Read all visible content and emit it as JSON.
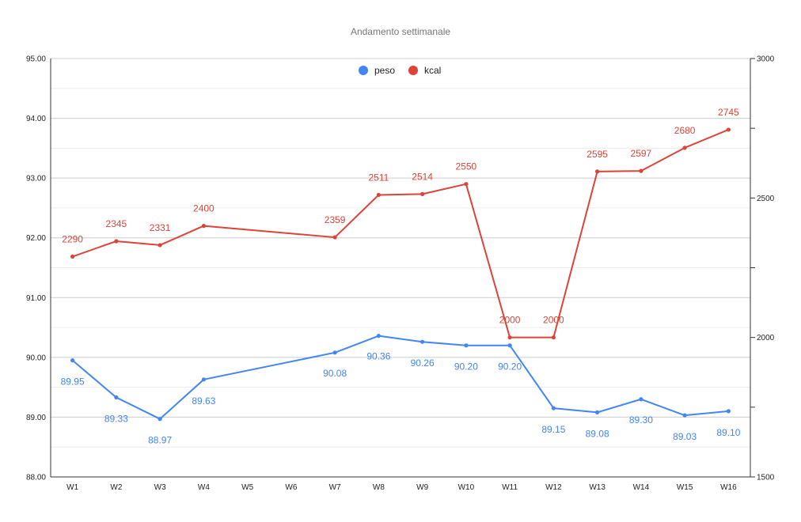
{
  "chart_data": {
    "type": "line",
    "title": "Andamento settimanale",
    "categories": [
      "W1",
      "W2",
      "W3",
      "W4",
      "W5",
      "W6",
      "W7",
      "W8",
      "W9",
      "W10",
      "W11",
      "W12",
      "W13",
      "W14",
      "W15",
      "W16"
    ],
    "legend_position": "top",
    "grid": true,
    "y_left": {
      "range": [
        88,
        95
      ],
      "ticks": [
        "88.00",
        "89.00",
        "90.00",
        "91.00",
        "92.00",
        "93.00",
        "94.00",
        "95.00"
      ]
    },
    "y_right": {
      "range": [
        1500,
        3000
      ],
      "ticks": [
        "1500",
        "2000",
        "2500",
        "3000"
      ]
    },
    "series": [
      {
        "name": "peso",
        "axis": "left",
        "color": "#4285F4",
        "values": [
          89.95,
          89.33,
          88.97,
          89.63,
          null,
          null,
          90.08,
          90.36,
          90.26,
          90.2,
          90.2,
          89.15,
          89.08,
          89.3,
          89.03,
          89.1
        ],
        "labels": [
          "89.95",
          "89.33",
          "88.97",
          "89.63",
          "",
          "",
          "90.08",
          "90.36",
          "90.26",
          "90.20",
          "90.20",
          "89.15",
          "89.08",
          "89.30",
          "89.03",
          "89.10"
        ]
      },
      {
        "name": "kcal",
        "axis": "right",
        "color": "#DB4437",
        "values": [
          2290,
          2345,
          2331,
          2400,
          null,
          null,
          2359,
          2511,
          2514,
          2550,
          2000,
          2000,
          2595,
          2597,
          2680,
          2745
        ],
        "labels": [
          "2290",
          "2345",
          "2331",
          "2400",
          "",
          "",
          "2359",
          "2511",
          "2514",
          "2550",
          "2000",
          "2000",
          "2595",
          "2597",
          "2680",
          "2745"
        ]
      }
    ]
  }
}
